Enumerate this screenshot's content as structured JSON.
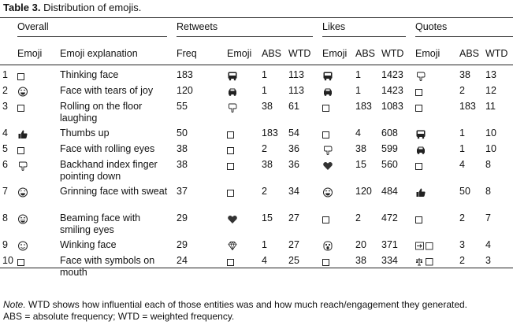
{
  "caption": {
    "label": "Table 3.",
    "text": "Distribution of emojis."
  },
  "groups": [
    "Overall",
    "Retweets",
    "Likes",
    "Quotes"
  ],
  "columns": {
    "emoji": "Emoji",
    "explanation": "Emoji explanation",
    "freq": "Freq",
    "emoji2": "Emoji",
    "abs": "ABS",
    "wtd": "WTD"
  },
  "rows": [
    {
      "n": "1",
      "o_emoji": "box",
      "expl": "Thinking face",
      "freq": "183",
      "rt_emoji": "bus",
      "rt_abs": "1",
      "rt_wtd": "113",
      "lk_emoji": "bus",
      "lk_abs": "1",
      "lk_wtd": "1423",
      "qt_emoji": "pointing-down",
      "qt_abs": "38",
      "qt_wtd": "13"
    },
    {
      "n": "2",
      "o_emoji": "tears-of-joy",
      "expl": "Face with tears of joy",
      "freq": "120",
      "rt_emoji": "car",
      "rt_abs": "1",
      "rt_wtd": "113",
      "lk_emoji": "car",
      "lk_abs": "1",
      "lk_wtd": "1423",
      "qt_emoji": "box",
      "qt_abs": "2",
      "qt_wtd": "12"
    },
    {
      "n": "3",
      "o_emoji": "box",
      "expl": "Rolling on the floor laughing",
      "freq": "55",
      "rt_emoji": "pointing-down",
      "rt_abs": "38",
      "rt_wtd": "61",
      "lk_emoji": "box",
      "lk_abs": "183",
      "lk_wtd": "1083",
      "qt_emoji": "box",
      "qt_abs": "183",
      "qt_wtd": "11"
    },
    {
      "n": "4",
      "o_emoji": "thumbs-up",
      "expl": "Thumbs up",
      "freq": "50",
      "rt_emoji": "box",
      "rt_abs": "183",
      "rt_wtd": "54",
      "lk_emoji": "box",
      "lk_abs": "4",
      "lk_wtd": "608",
      "qt_emoji": "bus",
      "qt_abs": "1",
      "qt_wtd": "10"
    },
    {
      "n": "5",
      "o_emoji": "box",
      "expl": "Face with rolling eyes",
      "freq": "38",
      "rt_emoji": "box",
      "rt_abs": "2",
      "rt_wtd": "36",
      "lk_emoji": "pointing-down",
      "lk_abs": "38",
      "lk_wtd": "599",
      "qt_emoji": "car",
      "qt_abs": "1",
      "qt_wtd": "10"
    },
    {
      "n": "6",
      "o_emoji": "pointing-down",
      "expl": "Backhand index finger pointing down",
      "freq": "38",
      "rt_emoji": "box",
      "rt_abs": "38",
      "rt_wtd": "36",
      "lk_emoji": "heart",
      "lk_abs": "15",
      "lk_wtd": "560",
      "qt_emoji": "box",
      "qt_abs": "4",
      "qt_wtd": "8"
    },
    {
      "n": "7",
      "o_emoji": "grin-sweat",
      "expl": "Grinning face with sweat",
      "freq": "37",
      "rt_emoji": "box",
      "rt_abs": "2",
      "rt_wtd": "34",
      "lk_emoji": "tears-of-joy",
      "lk_abs": "120",
      "lk_wtd": "484",
      "qt_emoji": "thumbs-up",
      "qt_abs": "50",
      "qt_wtd": "8"
    },
    {
      "n": "8",
      "o_emoji": "beaming",
      "expl": "Beaming face with smiling eyes",
      "freq": "29",
      "rt_emoji": "heart",
      "rt_abs": "15",
      "rt_wtd": "27",
      "lk_emoji": "box",
      "lk_abs": "2",
      "lk_wtd": "472",
      "qt_emoji": "box",
      "qt_abs": "2",
      "qt_wtd": "7"
    },
    {
      "n": "9",
      "o_emoji": "winking",
      "expl": "Winking face",
      "freq": "29",
      "rt_emoji": "gem",
      "rt_abs": "1",
      "rt_wtd": "27",
      "lk_emoji": "scream",
      "lk_abs": "20",
      "lk_wtd": "371",
      "qt_emoji": "arrow-box",
      "qt_abs": "3",
      "qt_wtd": "4"
    },
    {
      "n": "10",
      "o_emoji": "box",
      "expl": "Face with symbols on mouth",
      "freq": "24",
      "rt_emoji": "box",
      "rt_abs": "4",
      "rt_wtd": "25",
      "lk_emoji": "box",
      "lk_abs": "38",
      "lk_wtd": "334",
      "qt_emoji": "scales-box",
      "qt_abs": "2",
      "qt_wtd": "3"
    }
  ],
  "note": {
    "label": "Note.",
    "line1": " WTD shows how influential each of those entities was and how much reach/engagement they generated.",
    "line2": "ABS = absolute frequency; WTD = weighted frequency."
  }
}
